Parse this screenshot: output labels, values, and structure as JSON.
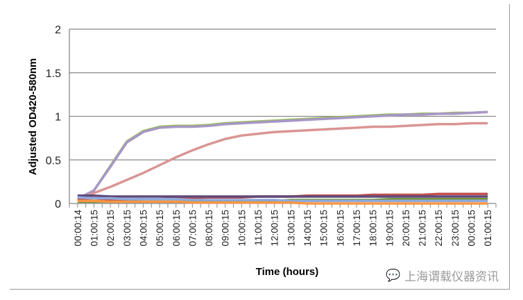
{
  "chart_data": {
    "type": "line",
    "xlabel": "Time (hours)",
    "ylabel": "Adjusted OD420-580nm",
    "ylim": [
      0,
      2
    ],
    "yticks": [
      "0",
      "0.5",
      "1",
      "1.5",
      "2"
    ],
    "grid": true,
    "categories": [
      "00:00:14",
      "01:00:15",
      "02:00:15",
      "03:00:15",
      "04:00:15",
      "05:00:15",
      "06:00:15",
      "07:00:15",
      "08:00:15",
      "09:00:15",
      "10:00:15",
      "11:00:15",
      "12:00:15",
      "13:00:15",
      "14:00:15",
      "15:00:15",
      "16:00:15",
      "17:00:15",
      "18:00:15",
      "19:00:15",
      "20:00:15",
      "21:00:15",
      "22:00:15",
      "23:00:15",
      "00:00:15",
      "01:00:15"
    ],
    "series": [
      {
        "color": "#9bbb59",
        "values": [
          0.05,
          0.15,
          0.43,
          0.71,
          0.83,
          0.88,
          0.89,
          0.89,
          0.9,
          0.92,
          0.93,
          0.94,
          0.95,
          0.96,
          0.97,
          0.98,
          0.99,
          1.0,
          1.01,
          1.02,
          1.02,
          1.03,
          1.03,
          1.04,
          1.04,
          1.05
        ]
      },
      {
        "color": "#a797c6",
        "values": [
          0.05,
          0.15,
          0.42,
          0.7,
          0.82,
          0.87,
          0.88,
          0.88,
          0.89,
          0.91,
          0.92,
          0.93,
          0.94,
          0.95,
          0.96,
          0.97,
          0.98,
          0.99,
          1.0,
          1.01,
          1.02,
          1.02,
          1.03,
          1.03,
          1.04,
          1.05
        ]
      },
      {
        "color": "#d99594",
        "values": [
          0.05,
          0.12,
          0.19,
          0.27,
          0.35,
          0.44,
          0.53,
          0.61,
          0.68,
          0.74,
          0.78,
          0.8,
          0.82,
          0.83,
          0.84,
          0.85,
          0.86,
          0.87,
          0.88,
          0.88,
          0.89,
          0.9,
          0.91,
          0.91,
          0.92,
          0.92
        ]
      },
      {
        "color": "#c0504d",
        "values": [
          0.05,
          0.03,
          0.04,
          0.04,
          0.05,
          0.05,
          0.06,
          0.06,
          0.07,
          0.07,
          0.07,
          0.08,
          0.08,
          0.08,
          0.09,
          0.09,
          0.09,
          0.09,
          0.1,
          0.1,
          0.1,
          0.1,
          0.11,
          0.11,
          0.11,
          0.11
        ]
      },
      {
        "color": "#604a7b",
        "values": [
          0.09,
          0.09,
          0.08,
          0.08,
          0.08,
          0.08,
          0.08,
          0.08,
          0.08,
          0.08,
          0.08,
          0.08,
          0.08,
          0.08,
          0.08,
          0.08,
          0.08,
          0.08,
          0.08,
          0.08,
          0.08,
          0.08,
          0.08,
          0.08,
          0.08,
          0.08
        ]
      },
      {
        "color": "#77933c",
        "values": [
          0.02,
          0.02,
          0.02,
          0.02,
          0.02,
          0.02,
          0.02,
          0.02,
          0.03,
          0.03,
          0.03,
          0.03,
          0.03,
          0.04,
          0.04,
          0.04,
          0.04,
          0.04,
          0.04,
          0.05,
          0.05,
          0.05,
          0.05,
          0.05,
          0.05,
          0.05
        ]
      },
      {
        "color": "#8eaadb",
        "values": [
          0.07,
          0.06,
          0.06,
          0.05,
          0.05,
          0.05,
          0.05,
          0.04,
          0.04,
          0.04,
          0.04,
          0.04,
          0.04,
          0.03,
          0.03,
          0.03,
          0.03,
          0.03,
          0.03,
          0.03,
          0.03,
          0.03,
          0.03,
          0.03,
          0.03,
          0.03
        ]
      },
      {
        "color": "#f79646",
        "values": [
          0.03,
          0.03,
          0.02,
          0.02,
          0.02,
          0.02,
          0.02,
          0.01,
          0.01,
          0.01,
          0.01,
          0.01,
          0.01,
          0.01,
          0.0,
          0.0,
          0.0,
          0.0,
          0.0,
          0.0,
          0.0,
          0.0,
          0.0,
          0.0,
          0.0,
          0.0
        ]
      }
    ]
  },
  "watermark": "上海谓载仪器资讯"
}
